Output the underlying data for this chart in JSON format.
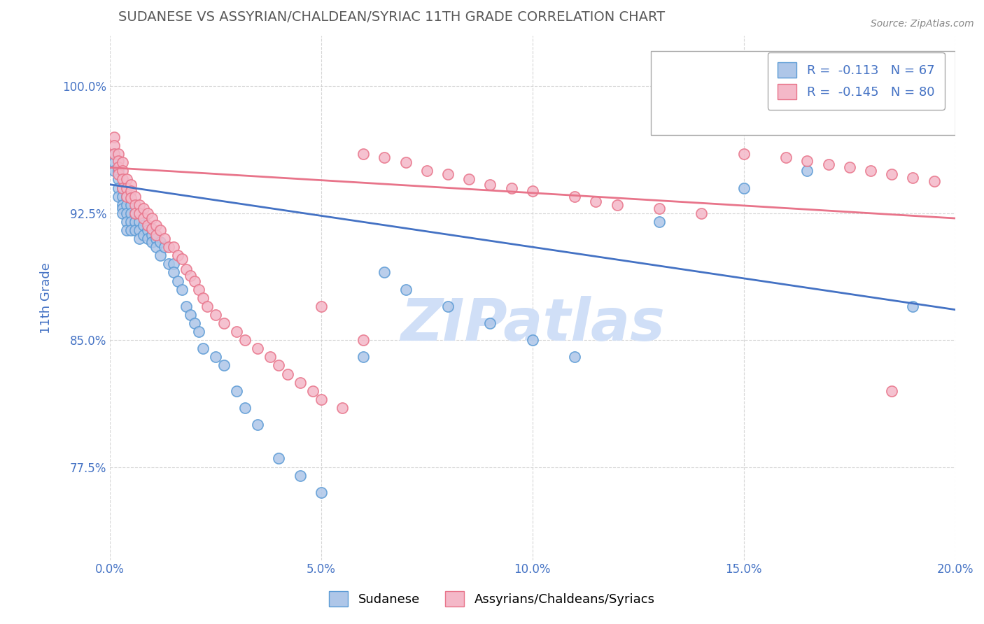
{
  "title": "SUDANESE VS ASSYRIAN/CHALDEAN/SYRIAC 11TH GRADE CORRELATION CHART",
  "source_text": "Source: ZipAtlas.com",
  "xlabel_bottom": "",
  "ylabel": "11th Grade",
  "xlim": [
    0.0,
    0.2
  ],
  "ylim": [
    0.72,
    1.03
  ],
  "xticks": [
    0.0,
    0.05,
    0.1,
    0.15,
    0.2
  ],
  "xticklabels": [
    "0.0%",
    "5.0%",
    "10.0%",
    "15.0%",
    "20.0%"
  ],
  "yticks": [
    0.775,
    0.85,
    0.925,
    1.0
  ],
  "yticklabels": [
    "77.5%",
    "85.0%",
    "92.5%",
    "100.0%"
  ],
  "legend1_label": "R =  -0.113   N = 67",
  "legend2_label": "R =  -0.145   N = 80",
  "scatter1_color": "#aec6e8",
  "scatter1_edge": "#5b9bd5",
  "scatter2_color": "#f4b8c8",
  "scatter2_edge": "#e8748a",
  "line1_color": "#4472c4",
  "line2_color": "#e8748a",
  "title_color": "#595959",
  "axis_color": "#4472c4",
  "watermark_text": "ZIPatlas",
  "watermark_color": "#d0dff7",
  "legend_label1": "Sudanese",
  "legend_label2": "Assyrians/Chaldeans/Syriacs",
  "blue_scatter_x": [
    0.001,
    0.001,
    0.001,
    0.002,
    0.002,
    0.002,
    0.002,
    0.003,
    0.003,
    0.003,
    0.003,
    0.003,
    0.004,
    0.004,
    0.004,
    0.004,
    0.004,
    0.005,
    0.005,
    0.005,
    0.005,
    0.006,
    0.006,
    0.006,
    0.007,
    0.007,
    0.007,
    0.008,
    0.008,
    0.009,
    0.009,
    0.01,
    0.01,
    0.011,
    0.011,
    0.012,
    0.012,
    0.013,
    0.014,
    0.015,
    0.015,
    0.016,
    0.017,
    0.018,
    0.019,
    0.02,
    0.021,
    0.022,
    0.025,
    0.027,
    0.03,
    0.032,
    0.035,
    0.04,
    0.045,
    0.05,
    0.06,
    0.065,
    0.07,
    0.08,
    0.09,
    0.1,
    0.11,
    0.13,
    0.15,
    0.165,
    0.19
  ],
  "blue_scatter_y": [
    0.96,
    0.955,
    0.95,
    0.95,
    0.945,
    0.94,
    0.935,
    0.94,
    0.935,
    0.93,
    0.928,
    0.925,
    0.935,
    0.93,
    0.925,
    0.92,
    0.915,
    0.93,
    0.925,
    0.92,
    0.915,
    0.925,
    0.92,
    0.915,
    0.92,
    0.915,
    0.91,
    0.918,
    0.912,
    0.915,
    0.91,
    0.912,
    0.908,
    0.91,
    0.905,
    0.908,
    0.9,
    0.905,
    0.895,
    0.895,
    0.89,
    0.885,
    0.88,
    0.87,
    0.865,
    0.86,
    0.855,
    0.845,
    0.84,
    0.835,
    0.82,
    0.81,
    0.8,
    0.78,
    0.77,
    0.76,
    0.84,
    0.89,
    0.88,
    0.87,
    0.86,
    0.85,
    0.84,
    0.92,
    0.94,
    0.95,
    0.87
  ],
  "pink_scatter_x": [
    0.001,
    0.001,
    0.001,
    0.002,
    0.002,
    0.002,
    0.002,
    0.003,
    0.003,
    0.003,
    0.003,
    0.004,
    0.004,
    0.004,
    0.005,
    0.005,
    0.005,
    0.006,
    0.006,
    0.006,
    0.007,
    0.007,
    0.008,
    0.008,
    0.009,
    0.009,
    0.01,
    0.01,
    0.011,
    0.011,
    0.012,
    0.013,
    0.014,
    0.015,
    0.016,
    0.017,
    0.018,
    0.019,
    0.02,
    0.021,
    0.022,
    0.023,
    0.025,
    0.027,
    0.03,
    0.032,
    0.035,
    0.038,
    0.04,
    0.042,
    0.045,
    0.048,
    0.05,
    0.055,
    0.06,
    0.065,
    0.07,
    0.075,
    0.08,
    0.085,
    0.09,
    0.095,
    0.1,
    0.11,
    0.115,
    0.12,
    0.13,
    0.14,
    0.15,
    0.16,
    0.165,
    0.17,
    0.175,
    0.18,
    0.185,
    0.19,
    0.195,
    0.05,
    0.06,
    0.185
  ],
  "pink_scatter_y": [
    0.97,
    0.965,
    0.96,
    0.96,
    0.956,
    0.952,
    0.948,
    0.955,
    0.95,
    0.945,
    0.94,
    0.945,
    0.94,
    0.935,
    0.942,
    0.938,
    0.934,
    0.935,
    0.93,
    0.925,
    0.93,
    0.925,
    0.928,
    0.922,
    0.925,
    0.918,
    0.922,
    0.916,
    0.918,
    0.912,
    0.915,
    0.91,
    0.905,
    0.905,
    0.9,
    0.898,
    0.892,
    0.888,
    0.885,
    0.88,
    0.875,
    0.87,
    0.865,
    0.86,
    0.855,
    0.85,
    0.845,
    0.84,
    0.835,
    0.83,
    0.825,
    0.82,
    0.815,
    0.81,
    0.96,
    0.958,
    0.955,
    0.95,
    0.948,
    0.945,
    0.942,
    0.94,
    0.938,
    0.935,
    0.932,
    0.93,
    0.928,
    0.925,
    0.96,
    0.958,
    0.956,
    0.954,
    0.952,
    0.95,
    0.948,
    0.946,
    0.944,
    0.87,
    0.85,
    0.82
  ],
  "line1_x0": 0.0,
  "line1_x1": 0.2,
  "line1_y0": 0.942,
  "line1_y1": 0.868,
  "line2_x0": 0.0,
  "line2_x1": 0.2,
  "line2_y0": 0.952,
  "line2_y1": 0.922
}
